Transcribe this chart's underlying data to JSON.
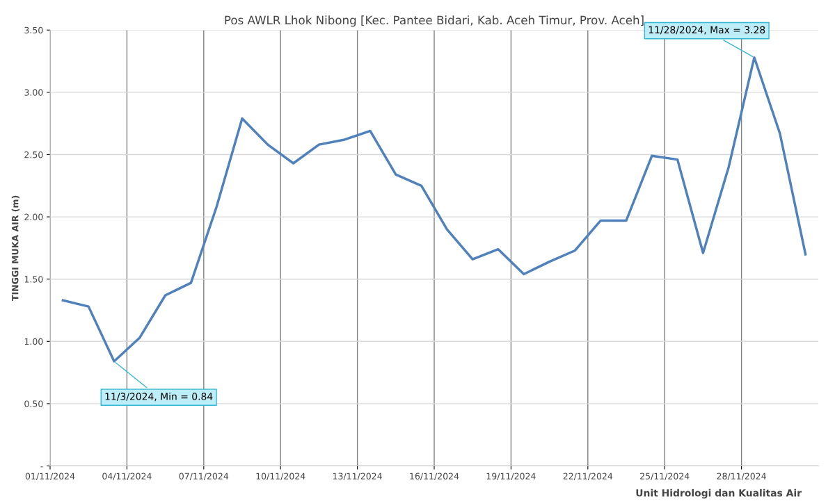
{
  "chart_data": {
    "type": "line",
    "title": "Pos AWLR Lhok Nibong [Kec. Pantee Bidari, Kab. Aceh Timur, Prov. Aceh]",
    "ylabel": "TINGGI MUKA AIR (m)",
    "x": [
      "2024-11-01T12:00",
      "2024-11-02T12:00",
      "2024-11-03T12:00",
      "2024-11-04T12:00",
      "2024-11-05T12:00",
      "2024-11-06T12:00",
      "2024-11-07T12:00",
      "2024-11-08T12:00",
      "2024-11-09T12:00",
      "2024-11-10T12:00",
      "2024-11-11T12:00",
      "2024-11-12T12:00",
      "2024-11-13T12:00",
      "2024-11-14T12:00",
      "2024-11-15T12:00",
      "2024-11-16T12:00",
      "2024-11-17T12:00",
      "2024-11-18T12:00",
      "2024-11-19T12:00",
      "2024-11-20T12:00",
      "2024-11-21T12:00",
      "2024-11-22T12:00",
      "2024-11-23T12:00",
      "2024-11-24T12:00",
      "2024-11-25T12:00",
      "2024-11-26T12:00",
      "2024-11-27T12:00",
      "2024-11-28T12:00",
      "2024-11-29T12:00",
      "2024-11-30T12:00"
    ],
    "series": [
      {
        "color": "#4f81bd",
        "values": [
          1.33,
          1.28,
          0.84,
          1.03,
          1.37,
          1.47,
          2.08,
          2.79,
          2.58,
          2.43,
          2.58,
          2.62,
          2.69,
          2.34,
          2.25,
          1.9,
          1.66,
          1.74,
          1.54,
          1.64,
          1.73,
          1.97,
          1.97,
          2.49,
          2.46,
          1.71,
          2.4,
          3.28,
          2.67,
          1.7
        ]
      }
    ],
    "xlim": [
      "2024-11-01",
      "2024-12-01"
    ],
    "xticks": [
      {
        "value": "2024-11-01",
        "label": "01/11/2024"
      },
      {
        "value": "2024-11-04",
        "label": "04/11/2024"
      },
      {
        "value": "2024-11-07",
        "label": "07/11/2024"
      },
      {
        "value": "2024-11-10",
        "label": "10/11/2024"
      },
      {
        "value": "2024-11-13",
        "label": "13/11/2024"
      },
      {
        "value": "2024-11-16",
        "label": "16/11/2024"
      },
      {
        "value": "2024-11-19",
        "label": "19/11/2024"
      },
      {
        "value": "2024-11-22",
        "label": "22/11/2024"
      },
      {
        "value": "2024-11-25",
        "label": "25/11/2024"
      },
      {
        "value": "2024-11-28",
        "label": "28/11/2024"
      }
    ],
    "ylim": [
      0,
      3.5
    ],
    "yticks": [
      {
        "value": 0,
        "label": "-"
      },
      {
        "value": 0.5,
        "label": "0.50"
      },
      {
        "value": 1.0,
        "label": "1.00"
      },
      {
        "value": 1.5,
        "label": "1.50"
      },
      {
        "value": 2.0,
        "label": "2.00"
      },
      {
        "value": 2.5,
        "label": "2.50"
      },
      {
        "value": 3.0,
        "label": "3.00"
      },
      {
        "value": 3.5,
        "label": "3.50"
      }
    ],
    "grid": true,
    "marker": "none",
    "line_style": "solid",
    "legend": false,
    "annotations": [
      {
        "text": "11/3/2024, Min = 0.84",
        "x": "2024-11-03T12:00",
        "y": 0.84
      },
      {
        "text": "11/28/2024, Max = 3.28",
        "x": "2024-11-28T12:00",
        "y": 3.28
      },
      "Unit Hidrologi dan Kualitas Air"
    ]
  }
}
